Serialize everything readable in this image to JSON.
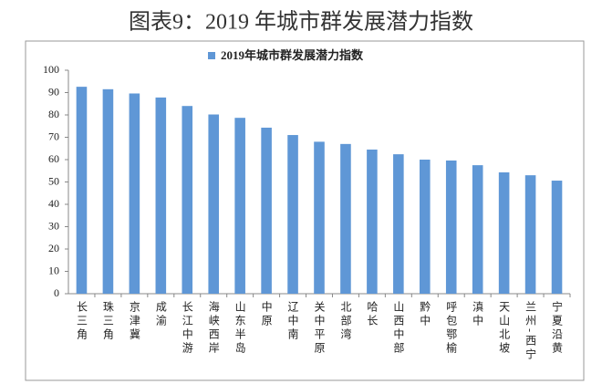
{
  "title": "图表9：2019 年城市群发展潜力指数",
  "chart_data": {
    "type": "bar",
    "categories": [
      "长三角",
      "珠三角",
      "京津冀",
      "成渝",
      "长江中游",
      "海峡西岸",
      "山东半岛",
      "中原",
      "辽中南",
      "关中平原",
      "北部湾",
      "哈长",
      "山西中部",
      "黔中",
      "呼包鄂榆",
      "滇中",
      "天山北坡",
      "兰州-西宁",
      "宁夏沿黄"
    ],
    "series": [
      {
        "name": "2019年城市群发展潜力指数",
        "color": "#5f97d6",
        "values": [
          92.6,
          91.5,
          89.6,
          87.8,
          84,
          80.2,
          78.7,
          74.3,
          71,
          68,
          67,
          64.5,
          62.4,
          60,
          59.6,
          57.5,
          54.3,
          53,
          50.6
        ]
      }
    ],
    "ylim": [
      0,
      100
    ],
    "yticks": [
      0,
      10,
      20,
      30,
      40,
      50,
      60,
      70,
      80,
      90,
      100
    ],
    "grid": false,
    "legend": "top"
  }
}
